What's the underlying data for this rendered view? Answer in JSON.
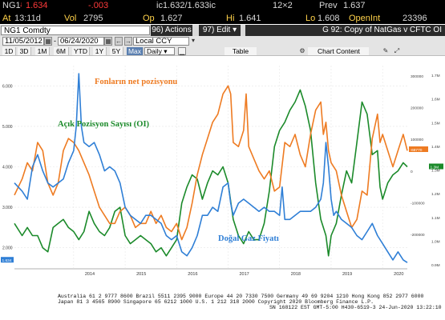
{
  "quote": {
    "ticker": "NG1",
    "last": "1.634",
    "at_label": "At",
    "time": "13:11d",
    "vol_label": "Vol",
    "volume": "2795",
    "change": "-.003",
    "bidask": "ic1.632/1.633ic",
    "size": "12×2",
    "op_label": "Op",
    "open": "1.627",
    "hi_label": "Hi",
    "high": "1.641",
    "lo_label": "Lo",
    "low": "1.608",
    "prev_label": "Prev",
    "prev": "1.637",
    "openint_label": "OpenInt",
    "openint": "23396"
  },
  "toolbar": {
    "security": "NG1 Comdty",
    "actions_label": "96) Actions ▾",
    "edit_label": "97) Edit ▾",
    "title": "G 92: Copy of NatGas v CFTC OI",
    "start_date": "11/05/2012",
    "end_date": "06/24/2020",
    "currency": "Local CCY",
    "periods": [
      "1D",
      "3D",
      "1M",
      "6M",
      "YTD",
      "1Y",
      "5Y",
      "Max"
    ],
    "selected_period": "Max",
    "frequency": "Daily ▾",
    "table_label": "Table",
    "chart_content_label": "Chart Content"
  },
  "chart_data": {
    "type": "line",
    "annotations": [
      "Fonların net pozisyonu",
      "Açık Pozisyon Sayısı (OI)",
      "Doğal Gaz Fiyatı"
    ],
    "x_ticks": [
      "2014",
      "2015",
      "2016",
      "2017",
      "2018",
      "2019",
      "2020"
    ],
    "left_axis": {
      "ticks": [
        "6.000",
        "5.000",
        "4.000",
        "3.000",
        "2.000"
      ],
      "ylim": [
        1.5,
        6.5
      ],
      "last_label": "1.634"
    },
    "net_axis": {
      "ticks": [
        "300000",
        "200000",
        "100000",
        "0",
        "-100000",
        "-200000"
      ],
      "last_label": "-68770"
    },
    "oi_axis": {
      "ticks": [
        "1.7M",
        "1.6M",
        "1.5M",
        "1.4M",
        "1.3M",
        "1.2M",
        "1.1M",
        "1.0M",
        "0.9M"
      ],
      "last_label": "1.3M"
    },
    "xlim": [
      2012.85,
      2020.48
    ],
    "series": [
      {
        "name": "Doğal Gaz Fiyatı",
        "color": "#2f7fd6",
        "points": [
          [
            2012.85,
            3.6
          ],
          [
            2013.0,
            3.4
          ],
          [
            2013.1,
            3.2
          ],
          [
            2013.2,
            4.0
          ],
          [
            2013.3,
            4.3
          ],
          [
            2013.4,
            3.9
          ],
          [
            2013.5,
            3.6
          ],
          [
            2013.6,
            3.5
          ],
          [
            2013.7,
            3.6
          ],
          [
            2013.8,
            3.7
          ],
          [
            2013.9,
            4.1
          ],
          [
            2014.0,
            4.4
          ],
          [
            2014.05,
            5.0
          ],
          [
            2014.1,
            6.3
          ],
          [
            2014.15,
            5.0
          ],
          [
            2014.2,
            4.6
          ],
          [
            2014.3,
            4.5
          ],
          [
            2014.4,
            4.6
          ],
          [
            2014.5,
            4.3
          ],
          [
            2014.6,
            3.9
          ],
          [
            2014.7,
            4.0
          ],
          [
            2014.8,
            3.9
          ],
          [
            2014.9,
            3.6
          ],
          [
            2015.0,
            3.0
          ],
          [
            2015.1,
            2.8
          ],
          [
            2015.2,
            2.7
          ],
          [
            2015.3,
            2.6
          ],
          [
            2015.4,
            2.8
          ],
          [
            2015.5,
            2.8
          ],
          [
            2015.6,
            2.7
          ],
          [
            2015.7,
            2.6
          ],
          [
            2015.8,
            2.3
          ],
          [
            2015.9,
            2.2
          ],
          [
            2016.0,
            2.3
          ],
          [
            2016.1,
            1.9
          ],
          [
            2016.2,
            1.8
          ],
          [
            2016.3,
            2.0
          ],
          [
            2016.4,
            2.3
          ],
          [
            2016.5,
            2.8
          ],
          [
            2016.6,
            2.8
          ],
          [
            2016.7,
            3.0
          ],
          [
            2016.8,
            2.9
          ],
          [
            2016.9,
            3.5
          ],
          [
            2017.0,
            3.6
          ],
          [
            2017.05,
            3.1
          ],
          [
            2017.1,
            2.8
          ],
          [
            2017.2,
            3.1
          ],
          [
            2017.3,
            3.2
          ],
          [
            2017.4,
            3.1
          ],
          [
            2017.5,
            3.0
          ],
          [
            2017.6,
            2.9
          ],
          [
            2017.7,
            3.0
          ],
          [
            2017.8,
            2.9
          ],
          [
            2017.9,
            2.9
          ],
          [
            2018.0,
            2.8
          ],
          [
            2018.05,
            3.5
          ],
          [
            2018.1,
            2.7
          ],
          [
            2018.2,
            2.7
          ],
          [
            2018.3,
            2.8
          ],
          [
            2018.4,
            2.9
          ],
          [
            2018.5,
            2.9
          ],
          [
            2018.6,
            2.9
          ],
          [
            2018.7,
            3.0
          ],
          [
            2018.8,
            3.2
          ],
          [
            2018.85,
            3.6
          ],
          [
            2018.9,
            4.6
          ],
          [
            2018.95,
            4.0
          ],
          [
            2019.0,
            3.2
          ],
          [
            2019.05,
            2.8
          ],
          [
            2019.1,
            2.9
          ],
          [
            2019.2,
            2.7
          ],
          [
            2019.3,
            2.6
          ],
          [
            2019.4,
            2.5
          ],
          [
            2019.5,
            2.3
          ],
          [
            2019.6,
            2.2
          ],
          [
            2019.7,
            2.4
          ],
          [
            2019.8,
            2.6
          ],
          [
            2019.9,
            2.3
          ],
          [
            2020.0,
            2.1
          ],
          [
            2020.1,
            1.9
          ],
          [
            2020.2,
            1.7
          ],
          [
            2020.3,
            1.9
          ],
          [
            2020.4,
            1.7
          ],
          [
            2020.48,
            1.634
          ]
        ]
      },
      {
        "name": "Fonların net pozisyonu",
        "color": "#ee7b22",
        "points": [
          [
            2012.85,
            3.3
          ],
          [
            2013.0,
            3.7
          ],
          [
            2013.1,
            4.1
          ],
          [
            2013.2,
            3.9
          ],
          [
            2013.3,
            4.6
          ],
          [
            2013.4,
            4.4
          ],
          [
            2013.5,
            3.6
          ],
          [
            2013.6,
            3.3
          ],
          [
            2013.7,
            3.6
          ],
          [
            2013.8,
            4.4
          ],
          [
            2013.9,
            4.7
          ],
          [
            2014.0,
            4.6
          ],
          [
            2014.1,
            4.4
          ],
          [
            2014.2,
            4.1
          ],
          [
            2014.3,
            3.8
          ],
          [
            2014.4,
            3.4
          ],
          [
            2014.5,
            3.0
          ],
          [
            2014.6,
            2.8
          ],
          [
            2014.7,
            2.6
          ],
          [
            2014.8,
            2.6
          ],
          [
            2014.9,
            2.9
          ],
          [
            2015.0,
            3.0
          ],
          [
            2015.1,
            2.8
          ],
          [
            2015.2,
            2.5
          ],
          [
            2015.3,
            2.6
          ],
          [
            2015.4,
            2.6
          ],
          [
            2015.5,
            2.9
          ],
          [
            2015.6,
            2.6
          ],
          [
            2015.7,
            2.8
          ],
          [
            2015.8,
            2.5
          ],
          [
            2015.9,
            2.4
          ],
          [
            2016.0,
            2.6
          ],
          [
            2016.1,
            2.2
          ],
          [
            2016.2,
            2.5
          ],
          [
            2016.3,
            3.1
          ],
          [
            2016.4,
            3.8
          ],
          [
            2016.5,
            4.3
          ],
          [
            2016.6,
            4.7
          ],
          [
            2016.7,
            5.1
          ],
          [
            2016.8,
            5.3
          ],
          [
            2016.9,
            5.8
          ],
          [
            2017.0,
            6.0
          ],
          [
            2017.05,
            5.8
          ],
          [
            2017.1,
            4.6
          ],
          [
            2017.2,
            4.5
          ],
          [
            2017.3,
            4.9
          ],
          [
            2017.35,
            5.8
          ],
          [
            2017.4,
            4.5
          ],
          [
            2017.5,
            4.2
          ],
          [
            2017.6,
            3.9
          ],
          [
            2017.7,
            3.7
          ],
          [
            2017.8,
            3.9
          ],
          [
            2017.9,
            3.4
          ],
          [
            2018.0,
            3.5
          ],
          [
            2018.1,
            4.6
          ],
          [
            2018.2,
            4.5
          ],
          [
            2018.3,
            4.8
          ],
          [
            2018.4,
            4.3
          ],
          [
            2018.5,
            4.0
          ],
          [
            2018.6,
            4.8
          ],
          [
            2018.7,
            5.4
          ],
          [
            2018.8,
            5.6
          ],
          [
            2018.85,
            4.8
          ],
          [
            2018.9,
            5.1
          ],
          [
            2018.95,
            4.4
          ],
          [
            2019.0,
            4.1
          ],
          [
            2019.1,
            3.9
          ],
          [
            2019.2,
            3.3
          ],
          [
            2019.3,
            2.9
          ],
          [
            2019.4,
            2.5
          ],
          [
            2019.5,
            2.7
          ],
          [
            2019.6,
            3.4
          ],
          [
            2019.7,
            3.3
          ],
          [
            2019.8,
            4.7
          ],
          [
            2019.9,
            5.3
          ],
          [
            2019.95,
            4.6
          ],
          [
            2020.0,
            4.8
          ],
          [
            2020.1,
            4.4
          ],
          [
            2020.2,
            4.0
          ],
          [
            2020.3,
            4.4
          ],
          [
            2020.4,
            4.8
          ],
          [
            2020.48,
            4.4
          ]
        ]
      },
      {
        "name": "Açık Pozisyon Sayısı (OI)",
        "color": "#1b8a2a",
        "points": [
          [
            2012.85,
            2.6
          ],
          [
            2013.0,
            2.3
          ],
          [
            2013.1,
            2.5
          ],
          [
            2013.2,
            2.3
          ],
          [
            2013.3,
            2.3
          ],
          [
            2013.4,
            2.0
          ],
          [
            2013.5,
            1.9
          ],
          [
            2013.6,
            2.5
          ],
          [
            2013.7,
            2.6
          ],
          [
            2013.8,
            2.7
          ],
          [
            2013.9,
            2.5
          ],
          [
            2014.0,
            2.4
          ],
          [
            2014.1,
            2.2
          ],
          [
            2014.2,
            2.4
          ],
          [
            2014.3,
            2.9
          ],
          [
            2014.4,
            2.6
          ],
          [
            2014.5,
            2.4
          ],
          [
            2014.6,
            2.3
          ],
          [
            2014.7,
            2.5
          ],
          [
            2014.8,
            2.9
          ],
          [
            2014.9,
            3.0
          ],
          [
            2015.0,
            2.3
          ],
          [
            2015.1,
            2.1
          ],
          [
            2015.2,
            2.2
          ],
          [
            2015.3,
            2.3
          ],
          [
            2015.4,
            2.2
          ],
          [
            2015.5,
            2.1
          ],
          [
            2015.6,
            1.9
          ],
          [
            2015.7,
            2.0
          ],
          [
            2015.8,
            1.8
          ],
          [
            2015.9,
            2.0
          ],
          [
            2016.0,
            2.2
          ],
          [
            2016.1,
            3.1
          ],
          [
            2016.2,
            3.5
          ],
          [
            2016.3,
            3.8
          ],
          [
            2016.4,
            3.7
          ],
          [
            2016.5,
            3.2
          ],
          [
            2016.6,
            3.6
          ],
          [
            2016.7,
            3.9
          ],
          [
            2016.8,
            3.8
          ],
          [
            2016.9,
            4.0
          ],
          [
            2017.0,
            3.6
          ],
          [
            2017.1,
            2.7
          ],
          [
            2017.2,
            2.3
          ],
          [
            2017.3,
            2.1
          ],
          [
            2017.4,
            2.4
          ],
          [
            2017.5,
            2.2
          ],
          [
            2017.6,
            2.2
          ],
          [
            2017.7,
            2.6
          ],
          [
            2017.8,
            3.4
          ],
          [
            2017.9,
            4.5
          ],
          [
            2018.0,
            4.9
          ],
          [
            2018.1,
            5.1
          ],
          [
            2018.2,
            5.4
          ],
          [
            2018.3,
            5.6
          ],
          [
            2018.4,
            5.9
          ],
          [
            2018.5,
            5.5
          ],
          [
            2018.6,
            4.9
          ],
          [
            2018.7,
            3.6
          ],
          [
            2018.8,
            2.7
          ],
          [
            2018.9,
            2.3
          ],
          [
            2018.95,
            1.8
          ],
          [
            2019.0,
            2.3
          ],
          [
            2019.1,
            2.6
          ],
          [
            2019.2,
            3.3
          ],
          [
            2019.3,
            3.9
          ],
          [
            2019.4,
            3.6
          ],
          [
            2019.5,
            4.6
          ],
          [
            2019.6,
            5.6
          ],
          [
            2019.7,
            5.3
          ],
          [
            2019.8,
            4.3
          ],
          [
            2019.9,
            4.4
          ],
          [
            2019.95,
            3.5
          ],
          [
            2020.0,
            3.2
          ],
          [
            2020.1,
            3.6
          ],
          [
            2020.2,
            3.8
          ],
          [
            2020.3,
            3.9
          ],
          [
            2020.4,
            4.1
          ],
          [
            2020.48,
            4.0
          ]
        ]
      }
    ]
  },
  "footer": {
    "line1": "Australia 61 2 9777 8600 Brazil 5511 2395 9000 Europe 44 20 7330 7500 Germany 49 69 9204 1210 Hong Kong 852 2977 6000",
    "line2": "Japan 81 3 4565 8900         Singapore 65 6212 1000      U.S. 1 212 318 2000        Copyright 2020 Bloomberg Finance L.P.",
    "line3": "SN 168122 EST  GMT-5:00 H430-6519-3 24-Jun-2020 13:22:10"
  }
}
